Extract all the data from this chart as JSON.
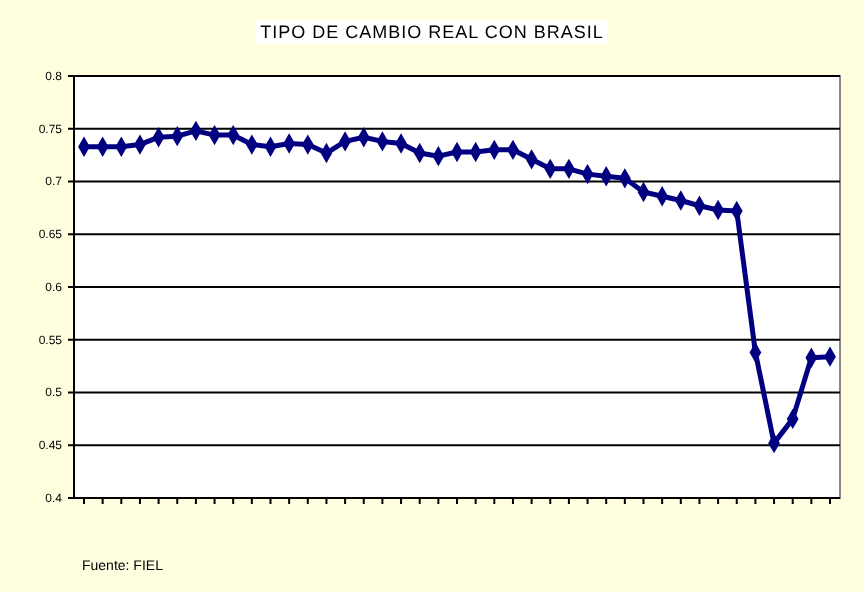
{
  "chart_data": {
    "type": "line",
    "title": "TIPO DE CAMBIO REAL CON BRASIL",
    "annotations": [
      "Fuente: FIEL"
    ],
    "categories": [
      null,
      null,
      null,
      null,
      null,
      null,
      null,
      null,
      null,
      null,
      null,
      null,
      null,
      null,
      null,
      null,
      null,
      null,
      null,
      null,
      null,
      null,
      null,
      null,
      null,
      null,
      null,
      null,
      null,
      null,
      null,
      null,
      null,
      null,
      null,
      null,
      null,
      null,
      null,
      null,
      null
    ],
    "series": [
      {
        "color": "#000080",
        "values": [
          0.733,
          0.733,
          0.733,
          0.735,
          0.742,
          0.743,
          0.748,
          0.744,
          0.744,
          0.735,
          0.733,
          0.736,
          0.735,
          0.727,
          0.738,
          0.742,
          0.738,
          0.736,
          0.727,
          0.724,
          0.728,
          0.728,
          0.73,
          0.73,
          0.721,
          0.712,
          0.712,
          0.707,
          0.705,
          0.703,
          0.69,
          0.686,
          0.682,
          0.677,
          0.673,
          0.672,
          0.538,
          0.452,
          0.475,
          0.533,
          0.534
        ]
      }
    ],
    "ylim": [
      0.4,
      0.8
    ],
    "yticks": [
      0.4,
      0.45,
      0.5,
      0.55,
      0.6,
      0.65,
      0.7,
      0.75,
      0.8
    ],
    "grid": "y",
    "marker": "diamond",
    "line_style": "solid"
  }
}
